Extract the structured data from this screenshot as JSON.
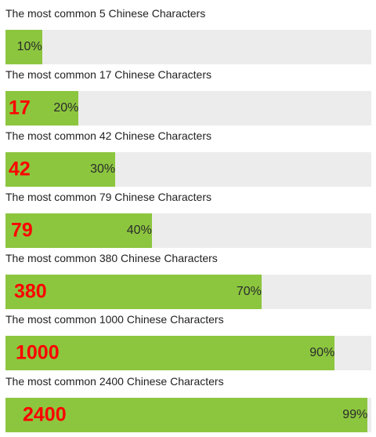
{
  "colors": {
    "fill": "#8cc63f",
    "track": "#ececec",
    "count_text": "#ff0000"
  },
  "rows": [
    {
      "label": "The most common 5 Chinese Characters",
      "count": "",
      "percent": "10%",
      "value": 10
    },
    {
      "label": "The most common 17 Chinese Characters",
      "count": "17",
      "percent": "20%",
      "value": 20
    },
    {
      "label": "The most common 42 Chinese Characters",
      "count": "42",
      "percent": "30%",
      "value": 30
    },
    {
      "label": "The most common 79 Chinese Characters",
      "count": "79",
      "percent": "40%",
      "value": 40
    },
    {
      "label": "The most common 380 Chinese Characters",
      "count": "380",
      "percent": "70%",
      "value": 70
    },
    {
      "label": "The most common 1000 Chinese Characters",
      "count": "1000",
      "percent": "90%",
      "value": 90
    },
    {
      "label": "The most common 2400 Chinese Characters",
      "count": "2400",
      "percent": "99%",
      "value": 99
    }
  ]
}
